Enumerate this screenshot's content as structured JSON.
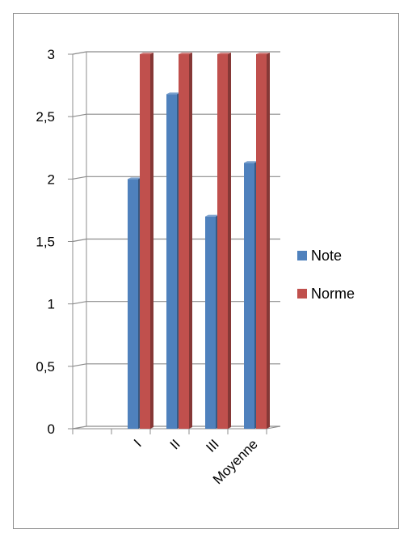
{
  "chart_data": {
    "type": "bar",
    "style": "3d-clustered-column",
    "title": "",
    "xlabel": "",
    "ylabel": "",
    "categories": [
      "I",
      "II",
      "III",
      "Moyenne"
    ],
    "series": [
      {
        "name": "Note",
        "values": [
          2.0,
          2.68,
          1.7,
          2.13
        ],
        "color": "#4f81bd"
      },
      {
        "name": "Norme",
        "values": [
          3.0,
          3.0,
          3.0,
          3.0
        ],
        "color": "#c0504d"
      }
    ],
    "ylim": [
      0,
      3
    ],
    "y_ticks": [
      {
        "value": 0,
        "label": "0"
      },
      {
        "value": 0.5,
        "label": "0,5"
      },
      {
        "value": 1,
        "label": "1"
      },
      {
        "value": 1.5,
        "label": "1,5"
      },
      {
        "value": 2,
        "label": "2"
      },
      {
        "value": 2.5,
        "label": "2,5"
      },
      {
        "value": 3,
        "label": "3"
      }
    ],
    "grid": true,
    "legend_position": "right"
  }
}
